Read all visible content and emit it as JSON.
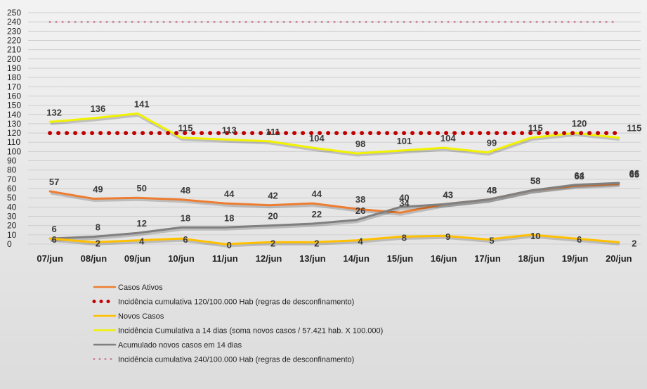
{
  "chart_data": {
    "type": "line",
    "title": "",
    "xlabel": "",
    "ylabel": "",
    "ylim": [
      0,
      250
    ],
    "ytick_step": 10,
    "grid": true,
    "legend_position": "bottom-left",
    "categories": [
      "07/jun",
      "08/jun",
      "09/jun",
      "10/jun",
      "11/jun",
      "12/jun",
      "13/jun",
      "14/jun",
      "15/jun",
      "16/jun",
      "17/jun",
      "18/jun",
      "19/jun",
      "20/jun"
    ],
    "series": [
      {
        "key": "threshold240",
        "name": "Incidência cumulativa 240/100.000 Hab (regras de desconfinamento)",
        "color": "#c9869e",
        "style": "dotted",
        "values": [
          240,
          240,
          240,
          240,
          240,
          240,
          240,
          240,
          240,
          240,
          240,
          240,
          240,
          240
        ],
        "show_labels": false
      },
      {
        "key": "incidencia14",
        "name": "Incidência Cumulativa a 14 dias (soma novos casos / 57.421 hab. X 100.000)",
        "color": "#f2f200",
        "style": "solid",
        "values": [
          132,
          136,
          141,
          115,
          113,
          111,
          104,
          98,
          101,
          104,
          99,
          115,
          120,
          115
        ],
        "show_labels": true
      },
      {
        "key": "threshold120",
        "name": "Incidência cumulativa 120/100.000 Hab (regras de desconfinamento)",
        "color": "#c00000",
        "style": "dotted-bold",
        "values": [
          120,
          120,
          120,
          120,
          120,
          120,
          120,
          120,
          120,
          120,
          120,
          120,
          120,
          120
        ],
        "show_labels": false
      },
      {
        "key": "ativos",
        "name": "Casos Ativos",
        "color": "#ed7d31",
        "style": "solid",
        "values": [
          57,
          49,
          50,
          48,
          44,
          42,
          44,
          38,
          34,
          43,
          48,
          58,
          63,
          65
        ],
        "show_labels": true
      },
      {
        "key": "acumulado14",
        "name": "Acumulado novos casos em 14 dias",
        "color": "#808080",
        "style": "solid",
        "values": [
          6,
          8,
          12,
          18,
          18,
          20,
          22,
          26,
          40,
          43,
          48,
          58,
          64,
          66
        ],
        "show_labels": true
      },
      {
        "key": "novos",
        "name": "Novos Casos",
        "color": "#ffc000",
        "style": "solid",
        "values": [
          6,
          2,
          4,
          6,
          0,
          2,
          2,
          4,
          8,
          9,
          5,
          10,
          6,
          2
        ],
        "show_labels": true
      }
    ],
    "legend_order": [
      "ativos",
      "threshold120",
      "novos",
      "incidencia14",
      "acumulado14",
      "threshold240"
    ]
  }
}
